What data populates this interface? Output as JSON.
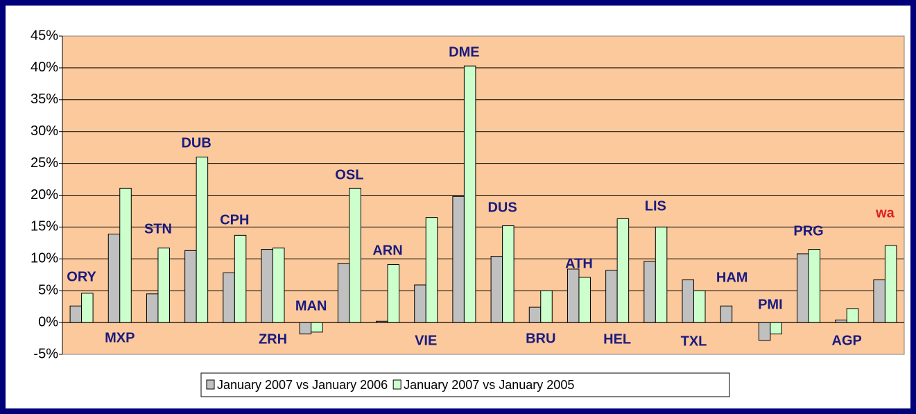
{
  "chart_data": {
    "type": "bar",
    "categories": [
      "ORY",
      "MXP",
      "STN",
      "DUB",
      "CPH",
      "ZRH",
      "MAN",
      "OSL",
      "ARN",
      "VIE",
      "DME",
      "DUS",
      "BRU",
      "ATH",
      "HEL",
      "LIS",
      "TXL",
      "HAM",
      "PMI",
      "PRG",
      "AGP",
      "wa"
    ],
    "label_colors": [
      "#1a1a80",
      "#1a1a80",
      "#1a1a80",
      "#1a1a80",
      "#1a1a80",
      "#1a1a80",
      "#1a1a80",
      "#1a1a80",
      "#1a1a80",
      "#1a1a80",
      "#1a1a80",
      "#1a1a80",
      "#1a1a80",
      "#1a1a80",
      "#1a1a80",
      "#1a1a80",
      "#1a1a80",
      "#1a1a80",
      "#1a1a80",
      "#1a1a80",
      "#1a1a80",
      "#e02020"
    ],
    "series": [
      {
        "name": "January 2007 vs January 2006",
        "color": "#c0c0c0",
        "values": [
          2.6,
          13.9,
          4.5,
          11.3,
          7.8,
          11.5,
          -1.8,
          9.3,
          0.2,
          5.9,
          19.8,
          10.4,
          2.4,
          8.4,
          8.2,
          9.6,
          6.7,
          2.6,
          -2.8,
          10.8,
          0.4,
          6.7
        ]
      },
      {
        "name": "January 2007 vs January 2005",
        "color": "#ccffcc",
        "values": [
          4.6,
          21.1,
          11.7,
          26.0,
          13.7,
          11.7,
          -1.5,
          21.1,
          9.1,
          16.5,
          40.3,
          15.2,
          5.0,
          7.1,
          16.3,
          15.0,
          5.0,
          null,
          -1.8,
          11.5,
          2.2,
          12.1
        ]
      }
    ],
    "ylim": [
      -5,
      45
    ],
    "yticks": [
      {
        "value": -5,
        "label": "-5%"
      },
      {
        "value": 0,
        "label": "0%"
      },
      {
        "value": 5,
        "label": "5%"
      },
      {
        "value": 10,
        "label": "10%"
      },
      {
        "value": 15,
        "label": "15%"
      },
      {
        "value": 20,
        "label": "20%"
      },
      {
        "value": 25,
        "label": "25%"
      },
      {
        "value": 30,
        "label": "30%"
      },
      {
        "value": 35,
        "label": "35%"
      },
      {
        "value": 40,
        "label": "40%"
      },
      {
        "value": 45,
        "label": "45%"
      }
    ],
    "grid": true,
    "plot_color": "#fbc99b",
    "legend": "bottom"
  }
}
